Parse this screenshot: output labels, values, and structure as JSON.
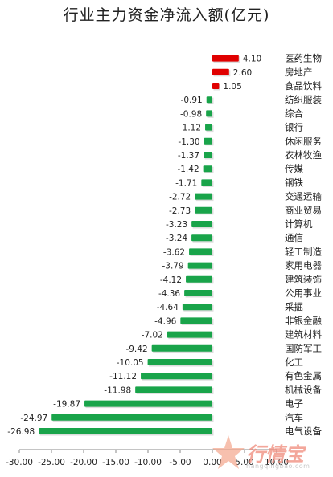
{
  "chart_data": {
    "type": "bar",
    "orientation": "horizontal",
    "title": "行业主力资金净流入额(亿元)",
    "categories": [
      "医药生物",
      "房地产",
      "食品饮料",
      "纺织服装",
      "综合",
      "银行",
      "休闲服务",
      "农林牧渔",
      "传媒",
      "钢铁",
      "交通运输",
      "商业贸易",
      "计算机",
      "通信",
      "轻工制造",
      "家用电器",
      "建筑装饰",
      "公用事业",
      "采掘",
      "非银金融",
      "建筑材料",
      "国防军工",
      "化工",
      "有色金属",
      "机械设备",
      "电子",
      "汽车",
      "电气设备"
    ],
    "values": [
      4.1,
      2.6,
      1.05,
      -0.91,
      -0.98,
      -1.12,
      -1.3,
      -1.37,
      -1.42,
      -1.71,
      -2.72,
      -2.73,
      -3.23,
      -3.24,
      -3.62,
      -3.79,
      -4.12,
      -4.36,
      -4.64,
      -4.96,
      -7.02,
      -9.42,
      -10.05,
      -11.12,
      -11.98,
      -19.87,
      -24.97,
      -26.98
    ],
    "value_labels": [
      "4.10",
      "2.60",
      "1.05",
      "-0.91",
      "-0.98",
      "-1.12",
      "-1.30",
      "-1.37",
      "-1.42",
      "-1.71",
      "-2.72",
      "-2.73",
      "-3.23",
      "-3.24",
      "-3.62",
      "-3.79",
      "-4.12",
      "-4.36",
      "-4.64",
      "-4.96",
      "-7.02",
      "-9.42",
      "-10.05",
      "-11.12",
      "-11.98",
      "-19.87",
      "-24.97",
      "-26.98"
    ],
    "x_ticks": [
      -30,
      -25,
      -20,
      -15,
      -10,
      -5,
      0,
      5,
      10
    ],
    "x_tick_labels": [
      "-30.00",
      "-25.00",
      "-20.00",
      "-15.00",
      "-10.00",
      "-5.00",
      "0.00",
      "5.00",
      "10.00"
    ],
    "xlim": [
      -30,
      10
    ],
    "grid": false,
    "legend": "none",
    "colors": {
      "positive": "#e00000",
      "negative": "#19a44a",
      "axis": "#888888",
      "text": "#222222"
    }
  },
  "watermark": {
    "text": "行情宝",
    "url": "hangqingbao.com"
  }
}
